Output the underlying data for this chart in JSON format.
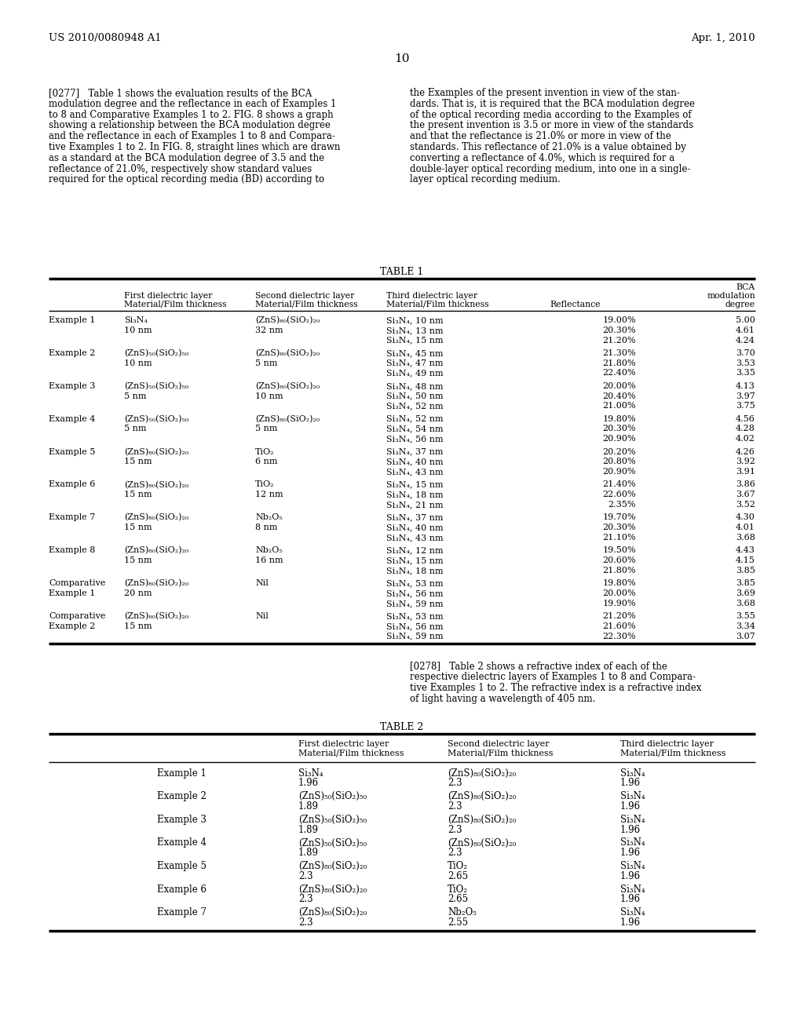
{
  "bg_color": "#ffffff",
  "header_left": "US 2010/0080948 A1",
  "header_right": "Apr. 1, 2010",
  "page_number": "10",
  "table1_title": "TABLE 1",
  "table2_title": "TABLE 2"
}
